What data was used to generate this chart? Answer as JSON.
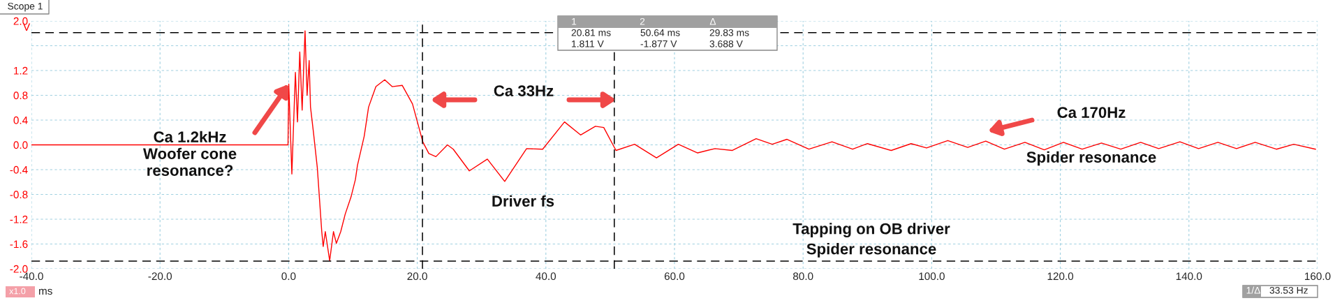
{
  "chart_data": {
    "type": "line",
    "xlabel": "ms",
    "ylabel": "V",
    "xlim": [
      -40,
      160
    ],
    "ylim": [
      -2.0,
      2.0
    ],
    "xticks": [
      {
        "value": -40,
        "label": "-40.0"
      },
      {
        "value": -20,
        "label": "-20.0"
      },
      {
        "value": 0,
        "label": "0.0"
      },
      {
        "value": 20,
        "label": "20.0"
      },
      {
        "value": 40,
        "label": "40.0"
      },
      {
        "value": 60,
        "label": "60.0"
      },
      {
        "value": 80,
        "label": "80.0"
      },
      {
        "value": 100,
        "label": "100.0"
      },
      {
        "value": 120,
        "label": "120.0"
      },
      {
        "value": 140,
        "label": "140.0"
      },
      {
        "value": 160,
        "label": "160.0"
      }
    ],
    "yticks": [
      {
        "value": -2.0,
        "label": "-2.0"
      },
      {
        "value": -1.6,
        "label": "-1.6"
      },
      {
        "value": -1.2,
        "label": "-1.2"
      },
      {
        "value": -0.8,
        "label": "-0.8"
      },
      {
        "value": -0.4,
        "label": "-0.4"
      },
      {
        "value": 0.0,
        "label": "0.0"
      },
      {
        "value": 0.4,
        "label": "0.4"
      },
      {
        "value": 0.8,
        "label": "0.8"
      },
      {
        "value": 1.2,
        "label": "1.2"
      },
      {
        "value": 1.6,
        "label": null
      },
      {
        "value": 2.0,
        "label": "2.0"
      }
    ],
    "grid": true,
    "line_style": "solid",
    "marker": "none",
    "series": [
      {
        "color": "#ff0000",
        "x": [
          -40,
          -20,
          -0.1,
          0.02,
          0.5,
          1.05,
          1.37,
          1.73,
          2.1,
          2.55,
          2.87,
          3.19,
          3.4,
          3.87,
          4.46,
          5.15,
          5.37,
          5.7,
          6.38,
          6.97,
          7.42,
          8.1,
          8.79,
          9.7,
          10.38,
          10.7,
          11.75,
          12.43,
          13.57,
          14.94,
          16.1,
          17.67,
          19.26,
          20.86,
          21.8,
          22.9,
          24.7,
          25.6,
          28.1,
          30.9,
          33.6,
          37.0,
          39.5,
          42.9,
          45.4,
          47.7,
          49.0,
          50.9,
          53.8,
          57.2,
          60.6,
          63.6,
          66.3,
          69.0,
          72.7,
          75.2,
          77.5,
          80.9,
          84.5,
          87.7,
          90.0,
          93.7,
          96.8,
          99.2,
          102.5,
          105.6,
          108.4,
          111.3,
          114.5,
          117.5,
          120.5,
          123.4,
          126.4,
          129.4,
          132.5,
          135.3,
          138.6,
          141.5,
          144.5,
          147.4,
          150.3,
          153.6,
          156.3,
          159.7
        ],
        "values": [
          0.0,
          0.0,
          0.0,
          0.98,
          -0.47,
          1.17,
          0.37,
          1.5,
          0.56,
          1.84,
          0.8,
          1.36,
          0.61,
          0.19,
          -0.37,
          -1.4,
          -1.64,
          -1.4,
          -1.87,
          -1.4,
          -1.59,
          -1.4,
          -1.12,
          -0.84,
          -0.56,
          -0.33,
          0.14,
          0.61,
          0.94,
          1.05,
          0.94,
          0.96,
          0.66,
          0.05,
          -0.14,
          -0.19,
          0.0,
          -0.07,
          -0.42,
          -0.23,
          -0.59,
          -0.06,
          -0.07,
          0.37,
          0.16,
          0.3,
          0.28,
          -0.09,
          0.01,
          -0.21,
          0.01,
          -0.13,
          -0.06,
          -0.09,
          0.1,
          0.01,
          0.09,
          -0.07,
          0.05,
          -0.07,
          0.02,
          -0.09,
          0.02,
          -0.05,
          0.07,
          -0.04,
          0.06,
          -0.07,
          0.04,
          -0.08,
          0.04,
          -0.07,
          0.03,
          -0.07,
          0.04,
          -0.06,
          0.05,
          -0.06,
          0.04,
          -0.06,
          0.04,
          -0.07,
          0.01,
          -0.07
        ]
      }
    ],
    "ref_lines": [
      {
        "axis": "y",
        "value": 1.811,
        "color": "#000000",
        "line_style": "dashed"
      },
      {
        "axis": "y",
        "value": -1.877,
        "color": "#000000",
        "line_style": "dashed"
      },
      {
        "axis": "x",
        "value": 20.81,
        "color": "#000000",
        "line_style": "dashed"
      },
      {
        "axis": "x",
        "value": 50.64,
        "color": "#000000",
        "line_style": "dashed"
      }
    ],
    "annotations": [
      {
        "text": "Ca 1.2kHz\nWoofer cone\nresonance?",
        "x": 0,
        "y": 0.98
      },
      "Ca 33Hz",
      "Ca 170Hz",
      "Spider resonance",
      "Driver fs",
      "Tapping on OB driver\nSpider resonance",
      "Scope 1",
      "1",
      "2",
      "Δ",
      "20.81 ms",
      "50.64 ms",
      "29.83 ms",
      "1.811 V",
      "-1.877 V",
      "3.688 V",
      "x1.0",
      "1/Δ",
      "33.53 Hz"
    ]
  }
}
